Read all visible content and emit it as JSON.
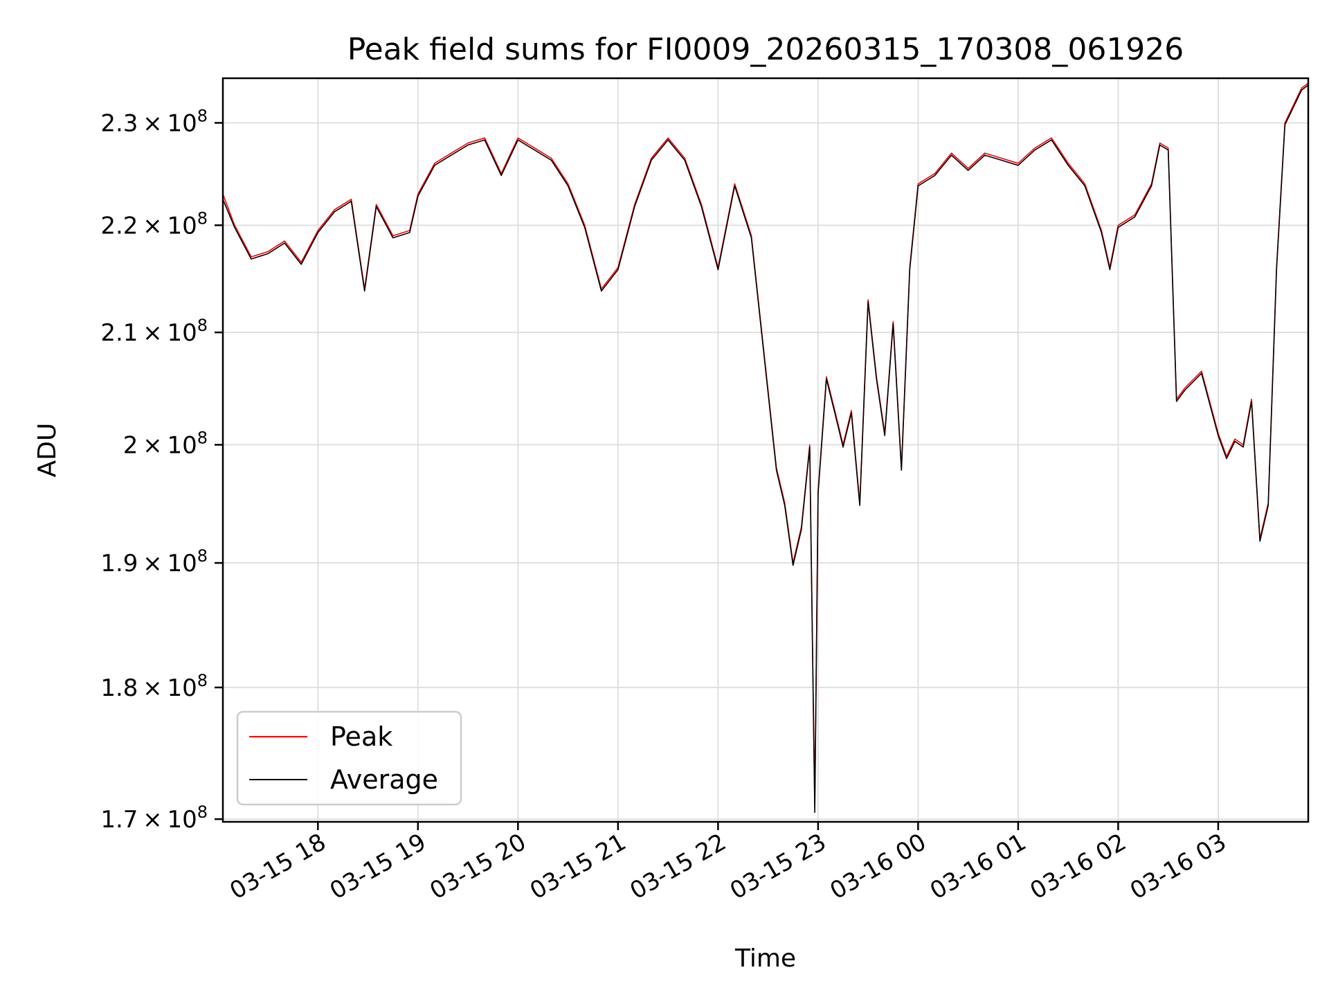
{
  "chart_data": {
    "type": "line",
    "title": "Peak field sums for FI0009_20260315_170308_061926",
    "xlabel": "Time",
    "ylabel": "ADU",
    "yscale": "log",
    "xlim": [
      "2026-03-15 17:03",
      "2026-03-16 03:54"
    ],
    "ylim": [
      169800000,
      234500000
    ],
    "grid": true,
    "legend_position": "lower-left",
    "x_ticks": [
      "2026-03-15 18:00",
      "2026-03-15 19:00",
      "2026-03-15 20:00",
      "2026-03-15 21:00",
      "2026-03-15 22:00",
      "2026-03-15 23:00",
      "2026-03-16 00:00",
      "2026-03-16 01:00",
      "2026-03-16 02:00",
      "2026-03-16 03:00"
    ],
    "x_tick_labels": [
      "03-15 18",
      "03-15 19",
      "03-15 20",
      "03-15 21",
      "03-15 22",
      "03-15 23",
      "03-16 00",
      "03-16 01",
      "03-16 02",
      "03-16 03"
    ],
    "y_ticks": [
      170000000,
      180000000,
      190000000,
      200000000,
      210000000,
      220000000,
      230000000
    ],
    "y_tick_mantissas": [
      "1.7",
      "1.8",
      "1.9",
      "2",
      "2.1",
      "2.2",
      "2.3"
    ],
    "y_tick_base": "10",
    "y_tick_exponent": "8",
    "y_tick_times": "×",
    "colors": {
      "peak": "#ff0000",
      "average": "#000000"
    },
    "x": [
      "2026-03-15 17:03",
      "2026-03-15 17:10",
      "2026-03-15 17:20",
      "2026-03-15 17:30",
      "2026-03-15 17:40",
      "2026-03-15 17:50",
      "2026-03-15 18:00",
      "2026-03-15 18:10",
      "2026-03-15 18:20",
      "2026-03-15 18:28",
      "2026-03-15 18:35",
      "2026-03-15 18:45",
      "2026-03-15 18:55",
      "2026-03-15 19:00",
      "2026-03-15 19:10",
      "2026-03-15 19:20",
      "2026-03-15 19:30",
      "2026-03-15 19:40",
      "2026-03-15 19:50",
      "2026-03-15 20:00",
      "2026-03-15 20:10",
      "2026-03-15 20:20",
      "2026-03-15 20:30",
      "2026-03-15 20:40",
      "2026-03-15 20:50",
      "2026-03-15 21:00",
      "2026-03-15 21:10",
      "2026-03-15 21:20",
      "2026-03-15 21:30",
      "2026-03-15 21:40",
      "2026-03-15 21:50",
      "2026-03-15 22:00",
      "2026-03-15 22:10",
      "2026-03-15 22:20",
      "2026-03-15 22:35",
      "2026-03-15 22:40",
      "2026-03-15 22:45",
      "2026-03-15 22:50",
      "2026-03-15 22:55",
      "2026-03-15 22:58",
      "2026-03-15 23:00",
      "2026-03-15 23:05",
      "2026-03-15 23:10",
      "2026-03-15 23:15",
      "2026-03-15 23:20",
      "2026-03-15 23:25",
      "2026-03-15 23:30",
      "2026-03-15 23:35",
      "2026-03-15 23:40",
      "2026-03-15 23:45",
      "2026-03-15 23:50",
      "2026-03-15 23:55",
      "2026-03-16 00:00",
      "2026-03-16 00:10",
      "2026-03-16 00:20",
      "2026-03-16 00:30",
      "2026-03-16 00:40",
      "2026-03-16 00:50",
      "2026-03-16 01:00",
      "2026-03-16 01:10",
      "2026-03-16 01:20",
      "2026-03-16 01:30",
      "2026-03-16 01:40",
      "2026-03-16 01:50",
      "2026-03-16 01:55",
      "2026-03-16 02:00",
      "2026-03-16 02:10",
      "2026-03-16 02:20",
      "2026-03-16 02:25",
      "2026-03-16 02:30",
      "2026-03-16 02:35",
      "2026-03-16 02:40",
      "2026-03-16 02:50",
      "2026-03-16 03:00",
      "2026-03-16 03:05",
      "2026-03-16 03:10",
      "2026-03-16 03:15",
      "2026-03-16 03:20",
      "2026-03-16 03:25",
      "2026-03-16 03:30",
      "2026-03-16 03:35",
      "2026-03-16 03:40",
      "2026-03-16 03:50",
      "2026-03-16 03:54"
    ],
    "series": [
      {
        "name": "Peak",
        "values": [
          223000000,
          220000000,
          217000000,
          217500000,
          218500000,
          216500000,
          219500000,
          221500000,
          222500000,
          214000000,
          222000000,
          219000000,
          219500000,
          223000000,
          226000000,
          227000000,
          228000000,
          228500000,
          225000000,
          228500000,
          227500000,
          226500000,
          224000000,
          220000000,
          214000000,
          216000000,
          222000000,
          226500000,
          228500000,
          226500000,
          222000000,
          216000000,
          224000000,
          219000000,
          198000000,
          195000000,
          190000000,
          193000000,
          200000000,
          171000000,
          196000000,
          206000000,
          203000000,
          200000000,
          203000000,
          195000000,
          213000000,
          206000000,
          201000000,
          211000000,
          198000000,
          216000000,
          224000000,
          225000000,
          227000000,
          225500000,
          227000000,
          226500000,
          226000000,
          227500000,
          228500000,
          226000000,
          224000000,
          219500000,
          216000000,
          220000000,
          221000000,
          224000000,
          228000000,
          227500000,
          204000000,
          205000000,
          206500000,
          201000000,
          199000000,
          200500000,
          200000000,
          204000000,
          192000000,
          195000000,
          216000000,
          230000000,
          233500000,
          234000000
        ]
      },
      {
        "name": "Average",
        "values": [
          222500000,
          219800000,
          216800000,
          217300000,
          218300000,
          216300000,
          219300000,
          221300000,
          222300000,
          213800000,
          221800000,
          218800000,
          219300000,
          222800000,
          225800000,
          226800000,
          227800000,
          228300000,
          224800000,
          228300000,
          227300000,
          226300000,
          223800000,
          219800000,
          213800000,
          215800000,
          221800000,
          226300000,
          228300000,
          226300000,
          221800000,
          215800000,
          223800000,
          218800000,
          197800000,
          194800000,
          189800000,
          192800000,
          199800000,
          170500000,
          195800000,
          205800000,
          202800000,
          199800000,
          202800000,
          194800000,
          212800000,
          205800000,
          200800000,
          210800000,
          197800000,
          215800000,
          223800000,
          224800000,
          226800000,
          225300000,
          226800000,
          226300000,
          225800000,
          227300000,
          228300000,
          225800000,
          223800000,
          219300000,
          215800000,
          219800000,
          220800000,
          223800000,
          227800000,
          227300000,
          203800000,
          204800000,
          206300000,
          200800000,
          198800000,
          200300000,
          199800000,
          203800000,
          191800000,
          194800000,
          215800000,
          229800000,
          233300000,
          233800000
        ]
      }
    ]
  }
}
